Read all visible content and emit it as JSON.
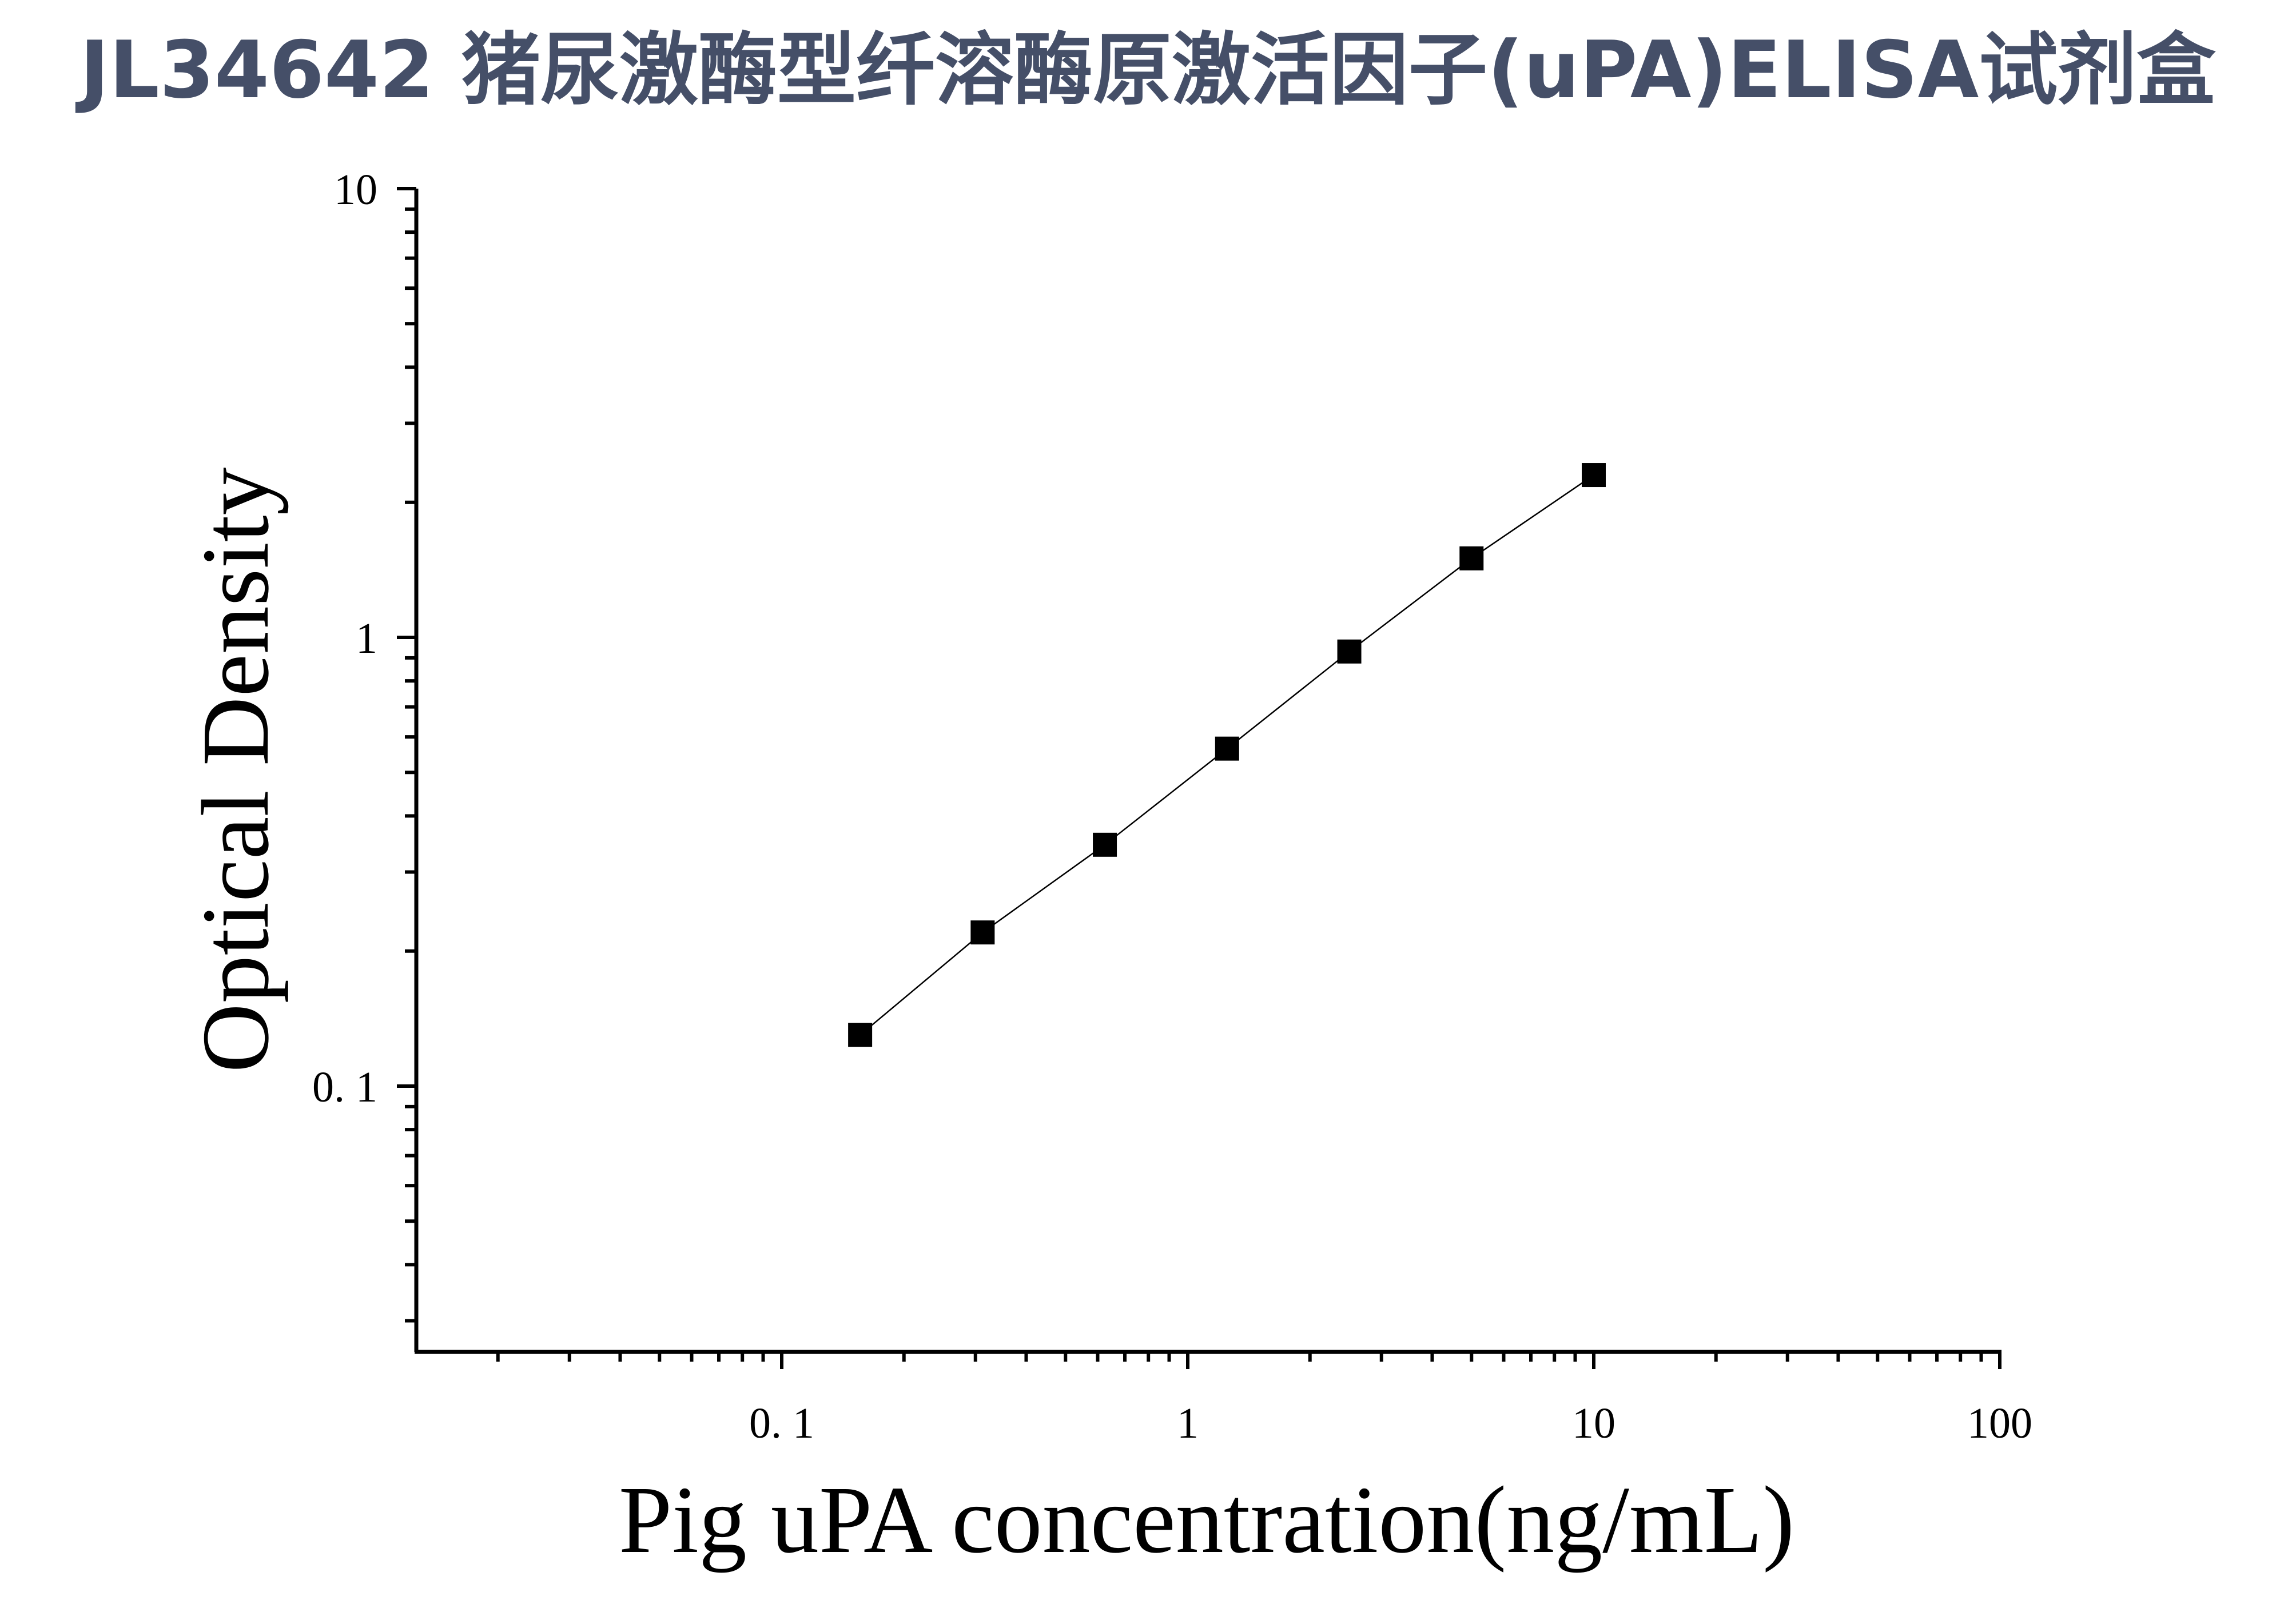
{
  "chart_data": {
    "type": "scatter",
    "title": "JL34642 猪尿激酶型纤溶酶原激活因子(uPA)ELISA试剂盒",
    "xlabel": "Pig uPA concentration(ng/mL)",
    "ylabel": "Optical Density",
    "x_scale": "log",
    "y_scale": "log",
    "xlim": [
      0.01,
      100
    ],
    "ylim": [
      0.025,
      10
    ],
    "x_ticks": [
      {
        "value": 0.1,
        "label": "0. 1"
      },
      {
        "value": 1,
        "label": "1"
      },
      {
        "value": 10,
        "label": "10"
      },
      {
        "value": 100,
        "label": "100"
      }
    ],
    "y_ticks": [
      {
        "value": 0.1,
        "label": "0. 1"
      },
      {
        "value": 1,
        "label": "1"
      },
      {
        "value": 10,
        "label": "10"
      }
    ],
    "grid": false,
    "series": [
      {
        "x": [
          0.156,
          0.3125,
          0.625,
          1.25,
          2.5,
          5,
          10
        ],
        "y": [
          0.13,
          0.22,
          0.345,
          0.565,
          0.93,
          1.5,
          2.3
        ],
        "marker": "square",
        "line": true,
        "color": "#000000"
      }
    ]
  }
}
